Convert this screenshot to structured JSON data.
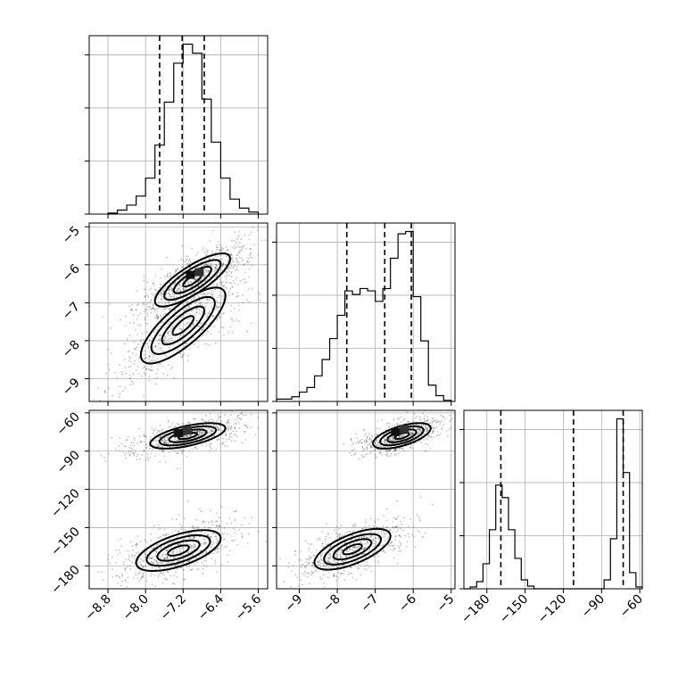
{
  "chart_data": {
    "type": "corner",
    "parameters": [
      {
        "range": [
          -9.2,
          -5.4
        ],
        "ticks": [
          -8.8,
          -8.0,
          -7.2,
          -6.4,
          -5.6
        ],
        "tick_labels": [
          "−8.8",
          "−8.0",
          "−7.2",
          "−6.4",
          "−5.6"
        ],
        "quantiles": [
          -7.7,
          -7.22,
          -6.75
        ],
        "histogram": {
          "edges": [
            -8.8,
            -8.6,
            -8.4,
            -8.2,
            -8.0,
            -7.8,
            -7.6,
            -7.4,
            -7.2,
            -7.0,
            -6.8,
            -6.6,
            -6.4,
            -6.2,
            -6.0,
            -5.8,
            -5.6
          ],
          "counts": [
            1,
            4,
            9,
            18,
            36,
            69,
            112,
            151,
            170,
            161,
            115,
            72,
            36,
            15,
            6,
            2
          ]
        }
      },
      {
        "range": [
          -9.6,
          -4.9
        ],
        "ticks": [
          -9,
          -8,
          -7,
          -6,
          -5
        ],
        "tick_labels": [
          "−9",
          "−8",
          "−7",
          "−6",
          "−5"
        ],
        "quantiles": [
          -7.75,
          -6.75,
          -6.05
        ],
        "histogram": {
          "edges": [
            -9.6,
            -9.4,
            -9.2,
            -9.0,
            -8.8,
            -8.6,
            -8.4,
            -8.2,
            -8.0,
            -7.8,
            -7.6,
            -7.4,
            -7.2,
            -7.0,
            -6.8,
            -6.6,
            -6.4,
            -6.2,
            -6.0,
            -5.8,
            -5.6,
            -5.4,
            -5.2,
            -5.0
          ],
          "counts": [
            2,
            2,
            4,
            8,
            12,
            22,
            36,
            54,
            74,
            95,
            92,
            97,
            95,
            86,
            97,
            123,
            144,
            146,
            90,
            52,
            14,
            5,
            1
          ]
        }
      },
      {
        "range": [
          -198,
          -58
        ],
        "ticks": [
          -180,
          -150,
          -120,
          -90,
          -60
        ],
        "tick_labels": [
          "−180",
          "−150",
          "−120",
          "−90",
          "−60"
        ],
        "quantiles": [
          -169,
          -112,
          -73
        ],
        "histogram": {
          "edges": [
            -198,
            -193,
            -188,
            -183,
            -178,
            -173,
            -168,
            -163,
            -158,
            -153,
            -148,
            -143,
            -138,
            -133,
            -128,
            -123,
            -118,
            -113,
            -108,
            -103,
            -98,
            -93,
            -88,
            -83,
            -78,
            -73,
            -68,
            -63,
            -58
          ],
          "counts": [
            0,
            2,
            8,
            28,
            66,
            116,
            102,
            66,
            34,
            10,
            3,
            0,
            0,
            0,
            0,
            0,
            0,
            0,
            0,
            0,
            0,
            0,
            10,
            56,
            190,
            130,
            18,
            2
          ]
        }
      }
    ],
    "pairs": [
      {
        "x_param": 0,
        "y_param": 1,
        "modes": [
          {
            "center": [
              -7.0,
              -6.4
            ],
            "sx": 0.4,
            "sy": 0.35,
            "rho": 0.8,
            "weight": 0.55
          },
          {
            "center": [
              -7.2,
              -7.6
            ],
            "sx": 0.45,
            "sy": 0.5,
            "rho": 0.78,
            "weight": 0.45
          }
        ],
        "peak": [
          -6.95,
          -6.3
        ]
      },
      {
        "x_param": 0,
        "y_param": 2,
        "modes": [
          {
            "center": [
              -7.1,
              -78
            ],
            "sx": 0.4,
            "sy": 5,
            "rho": 0.6,
            "weight": 0.5
          },
          {
            "center": [
              -7.3,
              -168
            ],
            "sx": 0.45,
            "sy": 8,
            "rho": 0.6,
            "weight": 0.5
          }
        ],
        "peak": [
          -7.2,
          -77
        ]
      },
      {
        "x_param": 1,
        "y_param": 2,
        "modes": [
          {
            "center": [
              -6.3,
              -78
            ],
            "sx": 0.38,
            "sy": 5,
            "rho": 0.6,
            "weight": 0.5
          },
          {
            "center": [
              -7.6,
              -167
            ],
            "sx": 0.5,
            "sy": 8,
            "rho": 0.65,
            "weight": 0.5
          }
        ],
        "peak": [
          -6.35,
          -76
        ]
      }
    ],
    "contour_levels": [
      0.5,
      1.0,
      1.5,
      2.0
    ],
    "grid": true
  }
}
